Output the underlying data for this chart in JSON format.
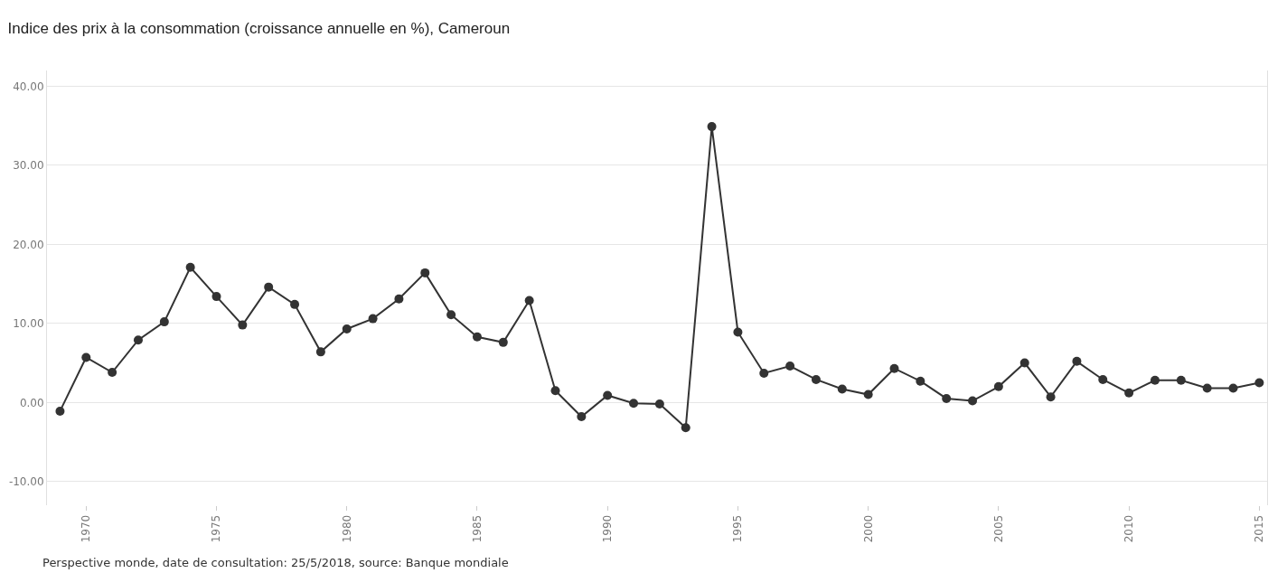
{
  "chart_data": {
    "type": "line",
    "title": "Indice des prix à la consommation (croissance annuelle en %), Cameroun",
    "x": [
      1969,
      1970,
      1971,
      1972,
      1973,
      1974,
      1975,
      1976,
      1977,
      1978,
      1979,
      1980,
      1981,
      1982,
      1983,
      1984,
      1985,
      1986,
      1987,
      1988,
      1989,
      1990,
      1991,
      1992,
      1993,
      1994,
      1995,
      1996,
      1997,
      1998,
      1999,
      2000,
      2001,
      2002,
      2003,
      2004,
      2005,
      2006,
      2007,
      2008,
      2009,
      2010,
      2011,
      2012,
      2013,
      2014,
      2015
    ],
    "series": [
      {
        "color": "#333333",
        "values": [
          -1.1,
          5.7,
          3.8,
          7.9,
          10.2,
          17.1,
          13.4,
          9.8,
          14.6,
          12.4,
          6.4,
          9.3,
          10.6,
          13.1,
          16.4,
          11.1,
          8.3,
          7.6,
          12.9,
          1.5,
          -1.8,
          0.9,
          -0.1,
          -0.2,
          -3.2,
          34.9,
          8.9,
          3.7,
          4.6,
          2.9,
          1.7,
          1.0,
          4.3,
          2.7,
          0.5,
          0.2,
          2.0,
          5.0,
          0.7,
          5.2,
          2.9,
          1.2,
          2.8,
          2.8,
          1.8,
          1.8,
          2.5
        ]
      }
    ],
    "xlim": [
      1968.5,
      2015.3
    ],
    "xticks": [
      1970,
      1975,
      1980,
      1985,
      1990,
      1995,
      2000,
      2005,
      2010,
      2015
    ],
    "ylim": [
      -13,
      42
    ],
    "yticks": [
      {
        "value": -10,
        "label": "-10.00"
      },
      {
        "value": 0,
        "label": "0.00"
      },
      {
        "value": 10,
        "label": "10.00"
      },
      {
        "value": 20,
        "label": "20.00"
      },
      {
        "value": 30,
        "label": "30.00"
      },
      {
        "value": 40,
        "label": "40.00"
      }
    ],
    "grid": "y",
    "legend": false,
    "marker": "circle",
    "line_style": "solid",
    "annotations": [
      "Perspective monde, date de consultation: 25/5/2018, source: Banque mondiale"
    ]
  }
}
